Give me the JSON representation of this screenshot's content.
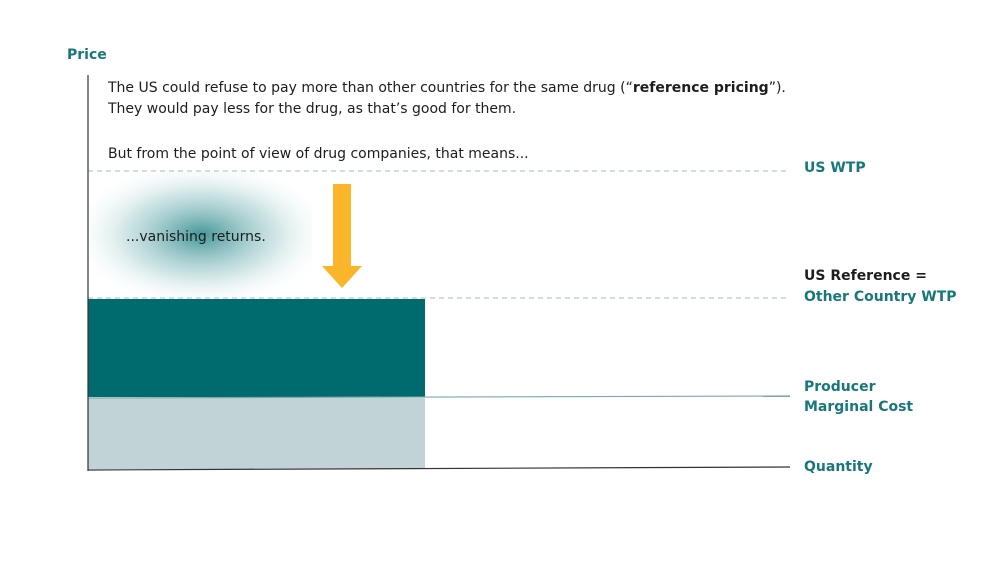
{
  "axis": {
    "y_label": "Price",
    "x_label": "Quantity"
  },
  "intro": {
    "line1": {
      "before": "The US could refuse to pay more than other countries for the same drug (“",
      "bold": "reference pricing",
      "after": "”)."
    },
    "line2": "They would pay less for the drug, as that’s good for them.",
    "line3": "But from the point of view of drug companies, that means..."
  },
  "callout": "...vanishing returns.",
  "levels": {
    "us_wtp": "US WTP",
    "us_reference": {
      "line1": "US Reference =",
      "line2": "Other Country WTP"
    },
    "marginal_cost": {
      "line1": "Producer",
      "line2": "Marginal Cost"
    }
  }
}
